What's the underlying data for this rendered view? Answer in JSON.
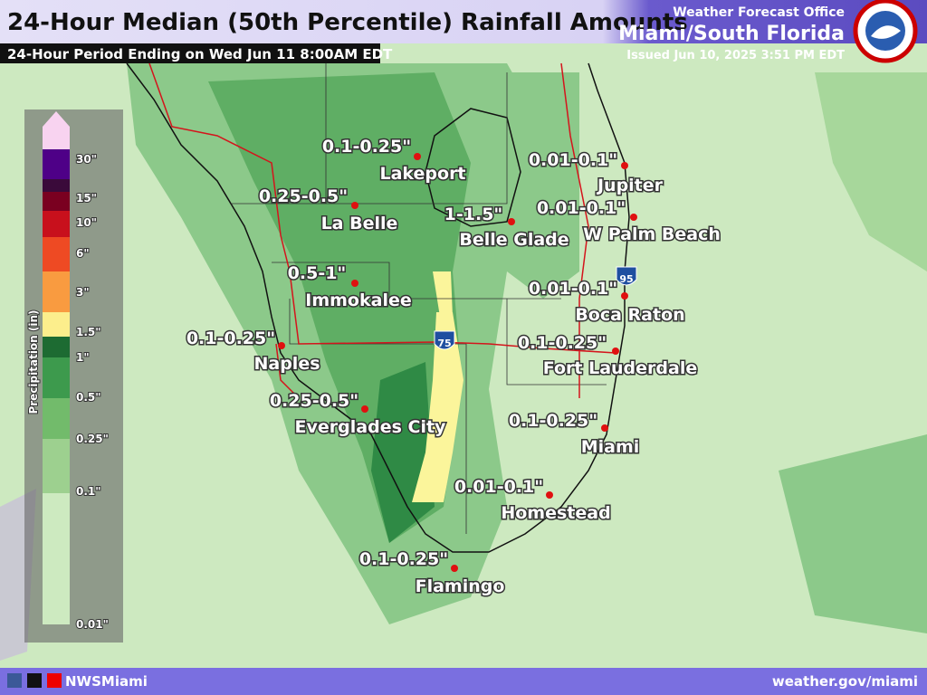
{
  "header": {
    "title": "24-Hour Median (50th Percentile) Rainfall Amounts",
    "subtitle": "24-Hour Period Ending on Wed Jun 11 8:00AM EDT",
    "office": "Weather Forecast Office",
    "office_name": "Miami/South Florida",
    "issued": "Issued Jun 10, 2025 3:51 PM EDT"
  },
  "legend": {
    "title": "Precipitation (in)",
    "labels": [
      "30\"",
      "15\"",
      "10\"",
      "6\"",
      "3\"",
      "1.5\"",
      "1\"",
      "0.5\"",
      "0.25\"",
      "0.1\"",
      "0.01\""
    ]
  },
  "highways": [
    "75",
    "95"
  ],
  "cities": [
    {
      "name": "Lakeport",
      "amount": "0.1-0.25\""
    },
    {
      "name": "La Belle",
      "amount": "0.25-0.5\""
    },
    {
      "name": "Belle Glade",
      "amount": "1-1.5\""
    },
    {
      "name": "Jupiter",
      "amount": "0.01-0.1\""
    },
    {
      "name": "W Palm Beach",
      "amount": "0.01-0.1\""
    },
    {
      "name": "Immokalee",
      "amount": "0.5-1\""
    },
    {
      "name": "Boca Raton",
      "amount": "0.01-0.1\""
    },
    {
      "name": "Naples",
      "amount": "0.1-0.25\""
    },
    {
      "name": "Fort Lauderdale",
      "amount": "0.1-0.25\""
    },
    {
      "name": "Everglades City",
      "amount": "0.25-0.5\""
    },
    {
      "name": "Miami",
      "amount": "0.1-0.25\""
    },
    {
      "name": "Homestead",
      "amount": "0.01-0.1\""
    },
    {
      "name": "Flamingo",
      "amount": "0.1-0.25\""
    }
  ],
  "footer": {
    "social": "NWSMiami",
    "url": "weather.gov/miami"
  }
}
